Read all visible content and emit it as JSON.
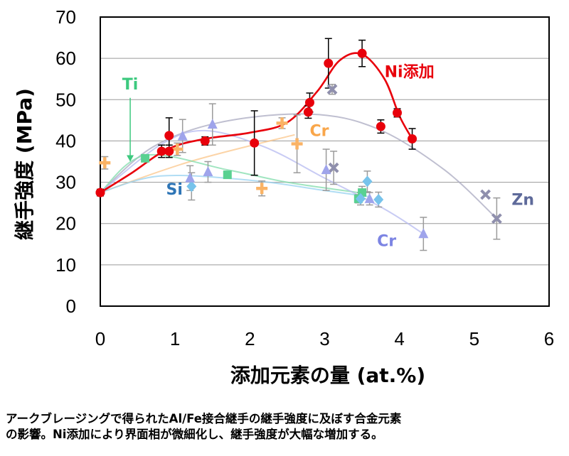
{
  "chart_data": {
    "type": "scatter",
    "xlabel": "添加元素の量 (at.%)",
    "ylabel": "継手強度 (MPa)",
    "xlim": [
      0,
      6
    ],
    "ylim": [
      0,
      70
    ],
    "x_ticks": [
      "0",
      "1",
      "2",
      "3",
      "4",
      "5",
      "6"
    ],
    "y_ticks": [
      "0",
      "10",
      "20",
      "30",
      "40",
      "50",
      "60",
      "70"
    ],
    "grid": "horizontal",
    "base_point": {
      "x": 0,
      "y": 27.5
    },
    "series": [
      {
        "name": "Ni添加",
        "label": "Ni添加",
        "color": "#e8000b",
        "marker": "circle",
        "points": [
          {
            "x": 0,
            "y": 27.5,
            "err": 0.8
          },
          {
            "x": 0.82,
            "y": 37.5,
            "err": 1.5
          },
          {
            "x": 0.92,
            "y": 41.3,
            "err": 4.3
          },
          {
            "x": 0.92,
            "y": 37.5,
            "err": 1.5
          },
          {
            "x": 1.4,
            "y": 40.0,
            "err": 1.0
          },
          {
            "x": 2.06,
            "y": 39.5,
            "err": 7.8
          },
          {
            "x": 2.78,
            "y": 47.0,
            "err": 1.5
          },
          {
            "x": 2.8,
            "y": 49.3,
            "err": 2.3
          },
          {
            "x": 3.05,
            "y": 58.8,
            "err": 6.0
          },
          {
            "x": 3.5,
            "y": 61.2,
            "err": 3.2
          },
          {
            "x": 3.75,
            "y": 43.5,
            "err": 1.6
          },
          {
            "x": 3.97,
            "y": 46.8,
            "err": 1.0
          },
          {
            "x": 4.17,
            "y": 40.5,
            "err": 2.5
          }
        ],
        "curve": [
          [
            0,
            27.5
          ],
          [
            0.4,
            32
          ],
          [
            0.9,
            38
          ],
          [
            1.4,
            40.5
          ],
          [
            2.0,
            42
          ],
          [
            2.5,
            44.5
          ],
          [
            2.9,
            52
          ],
          [
            3.2,
            59.5
          ],
          [
            3.5,
            61
          ],
          [
            3.8,
            55
          ],
          [
            4.0,
            46
          ],
          [
            4.17,
            40.5
          ]
        ]
      },
      {
        "name": "Ti",
        "label": "Ti",
        "color": "#3cc97e",
        "marker": "square",
        "points": [
          {
            "x": 0.6,
            "y": 35.8,
            "err": 0
          },
          {
            "x": 1.7,
            "y": 31.8,
            "err": 0
          },
          {
            "x": 3.45,
            "y": 26.0,
            "err": 1.0
          },
          {
            "x": 3.5,
            "y": 27.5,
            "err": 1.5
          }
        ],
        "curve": [
          [
            0,
            27.5
          ],
          [
            0.6,
            36.5
          ],
          [
            1.7,
            33
          ],
          [
            2.5,
            30
          ],
          [
            3.45,
            27.5
          ]
        ]
      },
      {
        "name": "Cr (orange)",
        "label": "Cr",
        "color": "#f9a64a",
        "marker": "plus",
        "points": [
          {
            "x": 0.06,
            "y": 34.7,
            "err": 1.5
          },
          {
            "x": 1.03,
            "y": 38.0,
            "err": 1.5
          },
          {
            "x": 2.16,
            "y": 28.5,
            "err": 1.8
          },
          {
            "x": 2.43,
            "y": 44.3,
            "err": 1.3
          },
          {
            "x": 2.63,
            "y": 39.3,
            "err": 7.0
          }
        ],
        "curve": [
          [
            0,
            27.5
          ],
          [
            1.2,
            35
          ],
          [
            2.6,
            41.5
          ]
        ]
      },
      {
        "name": "Si",
        "label": "Si",
        "color": "#5fb8e8",
        "marker": "diamond",
        "points": [
          {
            "x": 1.22,
            "y": 29.0,
            "err": 3.3
          },
          {
            "x": 3.57,
            "y": 30.2,
            "err": 2.5
          },
          {
            "x": 3.72,
            "y": 25.8,
            "err": 1.8
          },
          {
            "x": 3.48,
            "y": 26.0,
            "err": 1.5
          }
        ],
        "curve": [
          [
            0,
            27.5
          ],
          [
            0.8,
            31.5
          ],
          [
            2.0,
            30.5
          ],
          [
            3.0,
            28
          ],
          [
            3.6,
            26.5
          ]
        ]
      },
      {
        "name": "Cr (purple)",
        "label": "Cr",
        "color": "#8e94e8",
        "marker": "triangle",
        "points": [
          {
            "x": 1.1,
            "y": 41.2,
            "err": 4.0
          },
          {
            "x": 1.5,
            "y": 44.0,
            "err": 5.0
          },
          {
            "x": 1.2,
            "y": 31.0,
            "err": 3.0
          },
          {
            "x": 1.44,
            "y": 32.5,
            "err": 2.5
          },
          {
            "x": 3.02,
            "y": 33.0,
            "err": 5.0
          },
          {
            "x": 3.6,
            "y": 26.0,
            "err": 1.5
          },
          {
            "x": 4.32,
            "y": 17.5,
            "err": 4.0
          }
        ],
        "curve": [
          [
            0,
            27.5
          ],
          [
            0.8,
            39
          ],
          [
            1.4,
            42.5
          ],
          [
            2.2,
            38.5
          ],
          [
            3.0,
            31
          ],
          [
            3.8,
            23.5
          ],
          [
            4.32,
            17.5
          ]
        ]
      },
      {
        "name": "Zn",
        "label": "Zn",
        "color": "#7b7b9e",
        "marker": "x",
        "points": [
          {
            "x": 3.1,
            "y": 52.5,
            "err": 1.2
          },
          {
            "x": 3.12,
            "y": 33.5,
            "err": 4.0
          },
          {
            "x": 5.15,
            "y": 27.0,
            "err": 0
          },
          {
            "x": 5.3,
            "y": 21.2,
            "err": 5.0
          }
        ],
        "curve": [
          [
            0,
            27.5
          ],
          [
            0.7,
            38.5
          ],
          [
            1.6,
            44.5
          ],
          [
            2.8,
            46.5
          ],
          [
            3.7,
            43
          ],
          [
            4.6,
            33
          ],
          [
            5.3,
            21.2
          ]
        ]
      }
    ],
    "annotations": [
      {
        "text": "Ti",
        "color": "#3cc97e",
        "x": 0.4,
        "y": 52.5,
        "anchor": "middle",
        "arrow_to": [
          0.4,
          35
        ]
      },
      {
        "text": "Si",
        "color": "#2e75b6",
        "x": 0.88,
        "y": 27.0,
        "anchor": "start"
      },
      {
        "text": "Cr",
        "color": "#f9a64a",
        "x": 2.8,
        "y": 41.2,
        "anchor": "start"
      },
      {
        "text": "Ni添加",
        "color": "#e8000b",
        "x": 3.8,
        "y": 55.5,
        "anchor": "start"
      },
      {
        "text": "Zn",
        "color": "#5e6a9a",
        "x": 5.5,
        "y": 24.5,
        "anchor": "start"
      },
      {
        "text": "Cr",
        "color": "#7c84e3",
        "x": 3.7,
        "y": 14.5,
        "anchor": "start"
      }
    ]
  },
  "caption": {
    "line1": "アークブレージングで得られたAl/Fe接合継手の継手強度に及ぼす合金元素",
    "line2": "の影響。Ni添加により界面相が微細化し、継手強度が大幅な増加する。"
  }
}
